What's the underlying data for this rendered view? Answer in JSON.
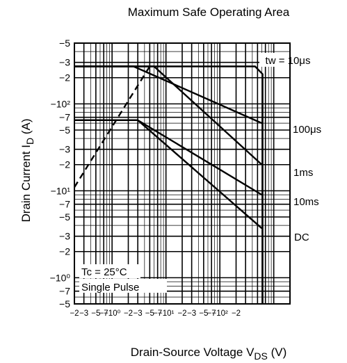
{
  "chart_data": {
    "type": "line",
    "title": "Maximum Safe Operating Area",
    "xlabel": {
      "main": "Drain-Source Voltage  V",
      "sub": "DS",
      "unit": " (V)"
    },
    "ylabel": {
      "main": "Drain Current  I",
      "sub": "D",
      "unit": " (A)"
    },
    "x_scale": "log",
    "y_scale": "log",
    "xlim": [
      -0.02,
      -200
    ],
    "ylim": [
      -0.5,
      -500
    ],
    "grid": true,
    "x_tick_labels": [
      "−2",
      "−3",
      "−5",
      "−7",
      "−10⁰",
      "−2",
      "−3",
      "−5",
      "−7",
      "−10¹",
      "−2",
      "−3",
      "−5",
      "−7",
      "−10²",
      "−2"
    ],
    "y_tick_labels": [
      "−5",
      "−3",
      "−2",
      "−10²",
      "−7",
      "−5",
      "−3",
      "−2",
      "−10¹",
      "−7",
      "−5",
      "−3",
      "−2",
      "−10⁰",
      "−7",
      "−5"
    ],
    "series": [
      {
        "name": "tw = 10μs",
        "style": "solid",
        "points": [
          [
            -0.02,
            -270
          ],
          [
            -45,
            -270
          ],
          [
            -62,
            -220
          ],
          [
            -62,
            -0.5
          ]
        ]
      },
      {
        "name": "100μs",
        "style": "solid",
        "points": [
          [
            -0.02,
            -270
          ],
          [
            -0.25,
            -270
          ],
          [
            -60,
            -60
          ]
        ]
      },
      {
        "name": "1ms",
        "style": "solid",
        "points": [
          [
            -0.02,
            -270
          ],
          [
            -0.6,
            -270
          ],
          [
            -60,
            -20
          ]
        ]
      },
      {
        "name": "10ms",
        "style": "solid",
        "points": [
          [
            -0.02,
            -65
          ],
          [
            -0.3,
            -65
          ],
          [
            -60,
            -9
          ]
        ]
      },
      {
        "name": "DC",
        "style": "solid",
        "points": [
          [
            -0.02,
            -65
          ],
          [
            -0.3,
            -65
          ],
          [
            -60,
            -3.7
          ]
        ]
      },
      {
        "name": "",
        "style": "dashed",
        "points": [
          [
            -0.02,
            -11
          ],
          [
            -0.5,
            -270
          ]
        ]
      }
    ],
    "annotations": {
      "tw": "tw = 10μs",
      "l100us": "100μs",
      "l1ms": "1ms",
      "l10ms": "10ms",
      "ldc": "DC",
      "cond1": "Tc = 25°C",
      "cond2": "Single Pulse"
    }
  }
}
